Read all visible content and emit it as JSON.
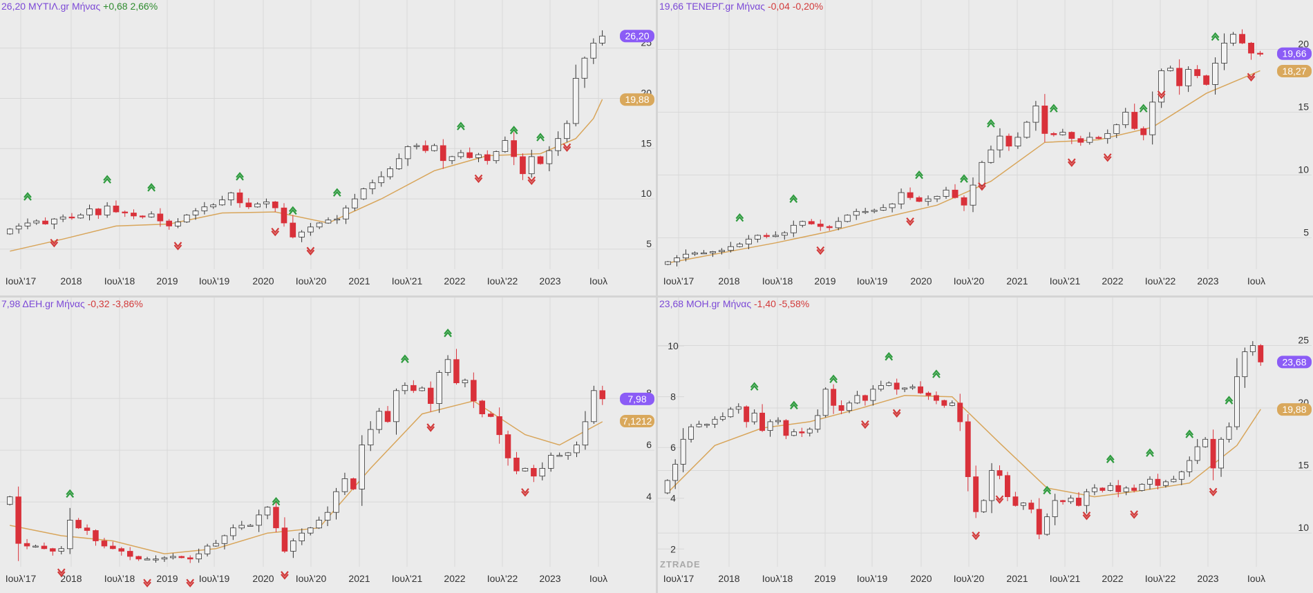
{
  "colors": {
    "background": "#ebebeb",
    "grid": "#d8d8d8",
    "up_body": "#f4f4f4",
    "up_border": "#333333",
    "down_body": "#d9313a",
    "sma": "#d8a55a",
    "price_label": "#8b5cf6",
    "sma_label": "#d9a85c",
    "arrow_up": "#2e9b3e",
    "arrow_down": "#d23a3a",
    "text_purple": "#7b48d6",
    "text_green": "#2e8b2e",
    "text_red": "#d23a3a"
  },
  "watermark": "ZTRADE",
  "chart_data": [
    {
      "type": "candlestick",
      "symbol": "ΜΥΤΙΛ.gr",
      "interval": "Μήνας",
      "header": {
        "value": "26,20",
        "symbol": "ΜΥΤΙΛ.gr Μήνας",
        "change": "+0,68",
        "change_pct": "2,66%",
        "direction": "up"
      },
      "x_labels": [
        "Ιουλ'17",
        "2018",
        "Ιουλ'18",
        "2019",
        "Ιουλ'19",
        "2020",
        "Ιουλ'20",
        "2021",
        "Ιουλ'21",
        "2022",
        "Ιουλ'22",
        "2023",
        "Ιουλ"
      ],
      "y_ticks": [
        "5",
        "10",
        "15",
        "20",
        "25"
      ],
      "ylim": [
        3,
        28
      ],
      "price_label": "26,20",
      "price_value": 26.2,
      "sma_label": "19,88",
      "sma_value": 19.88,
      "closes": [
        7,
        7.3,
        7.6,
        7.8,
        7.5,
        8,
        8.2,
        8.1,
        8.4,
        9,
        8.4,
        9.3,
        8.7,
        8.6,
        8.3,
        8.2,
        8.5,
        7.8,
        7.3,
        7.7,
        8.4,
        8.8,
        9.2,
        9.4,
        9.9,
        10.6,
        9.6,
        9.2,
        9.5,
        9.7,
        9.1,
        7.6,
        6.2,
        6.7,
        7.2,
        7.6,
        7.9,
        8,
        9.1,
        10,
        11,
        11.6,
        12.2,
        13,
        14,
        15.2,
        15.3,
        14.8,
        15.3,
        13.8,
        14.2,
        14.6,
        14.1,
        14.4,
        13.8,
        14.7,
        15.8,
        14.2,
        12.5,
        14.2,
        13.5,
        14.8,
        16,
        17.5,
        22,
        24,
        25.5,
        26.2
      ],
      "sma_points": [
        [
          0,
          4.8
        ],
        [
          6,
          6.0
        ],
        [
          12,
          7.3
        ],
        [
          18,
          7.5
        ],
        [
          24,
          8.6
        ],
        [
          30,
          8.7
        ],
        [
          36,
          7.6
        ],
        [
          42,
          10.0
        ],
        [
          48,
          12.8
        ],
        [
          54,
          14.3
        ],
        [
          60,
          14.5
        ],
        [
          64,
          16.0
        ],
        [
          66,
          18.0
        ],
        [
          67,
          19.9
        ]
      ],
      "arrows_up": [
        2,
        11,
        16,
        26,
        32,
        37,
        51,
        57,
        60
      ],
      "arrows_down": [
        5,
        19,
        30,
        34,
        53,
        59,
        63
      ]
    },
    {
      "type": "candlestick",
      "symbol": "ΤΕΝΕΡΓ.gr",
      "interval": "Μήνας",
      "header": {
        "value": "19,66",
        "symbol": "ΤΕΝΕΡΓ.gr Μήνας",
        "change": "-0,04",
        "change_pct": "-0,20%",
        "direction": "down"
      },
      "x_labels": [
        "Ιουλ'17",
        "2018",
        "Ιουλ'18",
        "2019",
        "Ιουλ'19",
        "2020",
        "Ιουλ'20",
        "2021",
        "Ιουλ'21",
        "2022",
        "Ιουλ'22",
        "2023",
        "Ιουλ"
      ],
      "y_ticks": [
        "5",
        "10",
        "15",
        "20"
      ],
      "ylim": [
        2.5,
        22.5
      ],
      "price_label": "19,66",
      "price_value": 19.66,
      "sma_label": "18,27",
      "sma_value": 18.27,
      "closes": [
        3.1,
        3.4,
        3.7,
        3.8,
        3.8,
        3.9,
        4,
        4.3,
        4.5,
        4.9,
        5.2,
        5.1,
        5.2,
        5.4,
        6,
        6.3,
        6.1,
        5.9,
        5.8,
        6.3,
        6.8,
        7.1,
        7.1,
        7.2,
        7.4,
        7.7,
        8.6,
        8.2,
        7.9,
        8.1,
        8.3,
        8.8,
        8.2,
        7.6,
        9.2,
        11,
        12,
        13.1,
        12.3,
        13,
        14.2,
        15.5,
        13.3,
        13.2,
        13.4,
        12.9,
        12.6,
        13,
        12.9,
        13.3,
        14,
        15,
        13.7,
        13.2,
        15.8,
        18.3,
        18.5,
        17.1,
        18.4,
        17.9,
        17.2,
        18.9,
        20.5,
        21.2,
        20.5,
        19.7,
        19.66
      ],
      "sma_points": [
        [
          0,
          3.0
        ],
        [
          6,
          3.8
        ],
        [
          12,
          4.6
        ],
        [
          18,
          5.5
        ],
        [
          24,
          6.6
        ],
        [
          30,
          7.6
        ],
        [
          36,
          9.5
        ],
        [
          42,
          12.6
        ],
        [
          48,
          12.8
        ],
        [
          54,
          13.8
        ],
        [
          60,
          16.5
        ],
        [
          66,
          18.3
        ]
      ],
      "arrows_up": [
        8,
        14,
        28,
        33,
        36,
        43,
        53,
        61,
        67
      ],
      "arrows_down": [
        17,
        27,
        35,
        45,
        49,
        55,
        65
      ]
    },
    {
      "type": "candlestick",
      "symbol": "ΔΕΗ.gr",
      "interval": "Μήνας",
      "header": {
        "value": "7,98",
        "symbol": "ΔΕΗ.gr Μήνας",
        "change": "-0,32",
        "change_pct": "-3,86%",
        "direction": "down"
      },
      "x_labels": [
        "Ιουλ'17",
        "2018",
        "Ιουλ'18",
        "2019",
        "Ιουλ'19",
        "2020",
        "Ιουλ'20",
        "2021",
        "Ιουλ'21",
        "2022",
        "Ιουλ'22",
        "2023",
        "Ιουλ"
      ],
      "y_ticks": [
        "4",
        "6",
        "8"
      ],
      "ylim": [
        1.5,
        11.2
      ],
      "price_label": "7,98",
      "price_value": 7.98,
      "sma_label": "7,1212",
      "sma_value": 7.1212,
      "closes": [
        4.2,
        2.4,
        2.3,
        2.3,
        2.2,
        2.1,
        2.2,
        3.3,
        3,
        2.9,
        2.5,
        2.3,
        2.2,
        2.1,
        1.9,
        1.8,
        1.8,
        1.8,
        1.85,
        1.9,
        1.85,
        1.8,
        2,
        2.3,
        2.4,
        2.7,
        3,
        3.1,
        3.1,
        3.5,
        3.8,
        3.0,
        2.1,
        2.5,
        2.8,
        3,
        3.3,
        3.6,
        4.4,
        4.9,
        4.5,
        6.2,
        6.8,
        7.5,
        7.1,
        8.3,
        8.5,
        8.3,
        8.4,
        7.8,
        9,
        9.5,
        8.6,
        8.7,
        7.9,
        7.4,
        7.3,
        6.6,
        5.7,
        5.2,
        5.3,
        5,
        5.3,
        5.8,
        5.8,
        5.9,
        6.2,
        7.1,
        8.3,
        7.98
      ],
      "sma_points": [
        [
          0,
          3.1
        ],
        [
          6,
          2.7
        ],
        [
          12,
          2.5
        ],
        [
          18,
          2.0
        ],
        [
          24,
          2.2
        ],
        [
          30,
          2.8
        ],
        [
          36,
          3.0
        ],
        [
          42,
          5.3
        ],
        [
          48,
          7.4
        ],
        [
          54,
          7.9
        ],
        [
          60,
          6.6
        ],
        [
          64,
          6.2
        ],
        [
          69,
          7.1
        ]
      ],
      "arrows_up": [
        7,
        31,
        46,
        51
      ],
      "arrows_down": [
        6,
        16,
        21,
        32,
        49,
        60
      ]
    },
    {
      "type": "candlestick",
      "symbol": "ΜΟΗ.gr",
      "interval": "Μήνας",
      "header": {
        "value": "23,68",
        "symbol": "ΜΟΗ.gr Μήνας",
        "change": "-1,40",
        "change_pct": "-5,58%",
        "direction": "down"
      },
      "left_y_ticks": [
        "2",
        "4",
        "6",
        "8",
        "10"
      ],
      "x_labels": [
        "Ιουλ'17",
        "2018",
        "Ιουλ'18",
        "2019",
        "Ιουλ'19",
        "2020",
        "Ιουλ'20",
        "2021",
        "Ιουλ'21",
        "2022",
        "Ιουλ'22",
        "2023",
        "Ιουλ"
      ],
      "y_ticks": [
        "10",
        "15",
        "20",
        "25"
      ],
      "ylim": [
        7.3,
        27.4
      ],
      "price_label": "23,68",
      "price_value": 23.68,
      "sma_label": "19,88",
      "sma_value": 19.88,
      "closes": [
        14.2,
        15.5,
        17.5,
        18.5,
        18.7,
        18.7,
        19.1,
        19.3,
        19.9,
        20.1,
        18.9,
        19.6,
        18.2,
        18.9,
        19,
        17.8,
        18.1,
        18,
        18.3,
        19.4,
        21.5,
        20.2,
        19.8,
        20.4,
        21,
        20.6,
        21.5,
        21.8,
        22,
        21.5,
        21.6,
        21.7,
        21.2,
        21,
        20.6,
        20.2,
        20.4,
        18.9,
        14.5,
        11.7,
        12.6,
        15,
        14.6,
        12.9,
        12.2,
        12.4,
        11.9,
        9.9,
        11.3,
        12.6,
        12.5,
        12.8,
        12.2,
        13.3,
        13.6,
        13.4,
        13.8,
        13.3,
        13.6,
        13.4,
        13.9,
        14.3,
        13.8,
        14.1,
        14.3,
        14.9,
        15.8,
        16.9,
        17.5,
        15.2,
        17.5,
        18.5,
        22.5,
        24.5,
        25,
        23.68
      ],
      "sma_points": [
        [
          0,
          13.2
        ],
        [
          6,
          17.0
        ],
        [
          12,
          18.4
        ],
        [
          18,
          18.9
        ],
        [
          24,
          19.9
        ],
        [
          30,
          21.0
        ],
        [
          36,
          20.9
        ],
        [
          42,
          17.2
        ],
        [
          48,
          13.6
        ],
        [
          54,
          12.9
        ],
        [
          60,
          13.4
        ],
        [
          66,
          14.0
        ],
        [
          72,
          17.0
        ],
        [
          75,
          19.9
        ]
      ],
      "arrows_up": [
        11,
        16,
        21,
        28,
        34,
        48,
        56,
        61,
        66,
        71
      ],
      "arrows_down": [
        25,
        29,
        39,
        42,
        53,
        59,
        69
      ]
    }
  ]
}
